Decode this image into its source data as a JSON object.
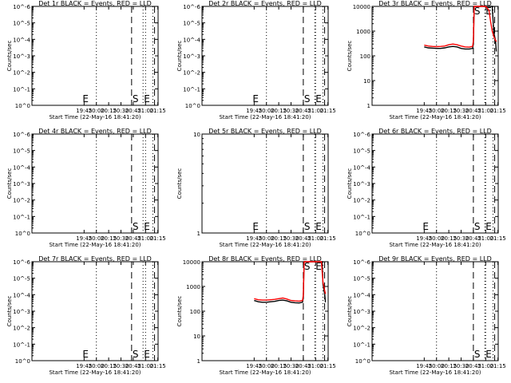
{
  "chart_data": [
    {
      "type": "line",
      "title": "Det 1r BLACK = Events, RED = LLD",
      "xlabel": "Start Time (22-May-16 18:41:20)",
      "ylabel": "Counts/sec",
      "scale": "log",
      "ylim": [
        "1e0",
        "1e-6"
      ],
      "y_ticks": [
        "10^0",
        "10^-1",
        "10^-2",
        "10^-3",
        "10^-4",
        "10^-5",
        "10^-6"
      ],
      "x_ticks": [
        "19:45",
        "20:00",
        "20:15",
        "20:30",
        "20:45",
        "21:00",
        "21:15"
      ],
      "markers": [
        {
          "label": "E",
          "x": "19:45"
        },
        {
          "label": "S",
          "x": "20:43"
        },
        {
          "label": "E",
          "x": "20:57"
        }
      ],
      "series": [],
      "colors": {
        "events": "#000000",
        "lld": "#ff0000"
      }
    },
    {
      "type": "line",
      "title": "Det 2r BLACK = Events, RED = LLD",
      "xlabel": "Start Time (22-May-16 18:41:20)",
      "ylabel": "Counts/sec",
      "scale": "log",
      "ylim": [
        "1e0",
        "1e-6"
      ],
      "y_ticks": [
        "10^0",
        "10^-1",
        "10^-2",
        "10^-3",
        "10^-4",
        "10^-5",
        "10^-6"
      ],
      "x_ticks": [
        "19:45",
        "20:00",
        "20:15",
        "20:30",
        "20:45",
        "21:00",
        "21:15"
      ],
      "markers": [
        {
          "label": "E",
          "x": "19:45"
        },
        {
          "label": "S",
          "x": "20:45"
        },
        {
          "label": "E",
          "x": "20:59"
        }
      ],
      "series": [],
      "colors": {
        "events": "#000000",
        "lld": "#ff0000"
      }
    },
    {
      "type": "line",
      "title": "Det 3r BLACK = Events, RED = LLD",
      "xlabel": "Start Time (22-May-16 18:41:20)",
      "ylabel": "Counts/sec",
      "scale": "log",
      "ylim": [
        1,
        10000
      ],
      "y_ticks": [
        "1",
        "10",
        "100",
        "1000",
        "10000"
      ],
      "x_ticks": [
        "19:45",
        "20:00",
        "20:15",
        "20:30",
        "20:45",
        "21:00",
        "21:15"
      ],
      "markers": [
        {
          "label": "S",
          "x": "20:45"
        },
        {
          "label": "E",
          "x": "20:59"
        }
      ],
      "series": [
        {
          "role": "events",
          "x": [
            "19:45",
            "19:50",
            "19:55",
            "20:00",
            "20:05",
            "20:10",
            "20:15",
            "20:20",
            "20:25",
            "20:30",
            "20:35",
            "20:40",
            "20:44",
            "20:45",
            "20:46",
            "21:08",
            "21:10",
            "21:12",
            "21:13"
          ],
          "y": [
            230,
            210,
            205,
            200,
            200,
            210,
            230,
            240,
            230,
            200,
            190,
            190,
            200,
            300,
            10000,
            10000,
            900,
            400,
            150
          ]
        },
        {
          "role": "lld",
          "x": [
            "19:45",
            "19:50",
            "19:55",
            "20:00",
            "20:05",
            "20:10",
            "20:15",
            "20:20",
            "20:25",
            "20:30",
            "20:35",
            "20:40",
            "20:44",
            "20:45",
            "20:46",
            "21:00",
            "21:04",
            "21:06",
            "21:08",
            "21:10",
            "21:12",
            "21:14"
          ],
          "y": [
            270,
            250,
            240,
            235,
            240,
            250,
            280,
            300,
            280,
            250,
            230,
            225,
            240,
            400,
            10000,
            10000,
            7000,
            2500,
            1000,
            600,
            420,
            380
          ]
        }
      ],
      "colors": {
        "events": "#000000",
        "lld": "#ff0000"
      }
    },
    {
      "type": "line",
      "title": "Det 4r BLACK = Events, RED = LLD",
      "xlabel": "Start Time (22-May-16 18:41:20)",
      "ylabel": "Counts/sec",
      "scale": "log",
      "ylim": [
        "1e0",
        "1e-6"
      ],
      "y_ticks": [
        "10^0",
        "10^-1",
        "10^-2",
        "10^-3",
        "10^-4",
        "10^-5",
        "10^-6"
      ],
      "x_ticks": [
        "19:45",
        "20:00",
        "20:15",
        "20:30",
        "20:45",
        "21:00",
        "21:15"
      ],
      "markers": [
        {
          "label": "S",
          "x": "20:43"
        },
        {
          "label": "E",
          "x": "20:57"
        }
      ],
      "series": [],
      "colors": {
        "events": "#000000",
        "lld": "#ff0000"
      }
    },
    {
      "type": "line",
      "title": "Det 5r BLACK = Events, RED = LLD",
      "xlabel": "Start Time (22-May-16 18:41:20)",
      "ylabel": "Counts/sec",
      "scale": "log",
      "ylim": [
        1,
        10
      ],
      "y_ticks": [
        "1",
        "10"
      ],
      "x_ticks": [
        "19:45",
        "20:00",
        "20:15",
        "20:30",
        "20:45",
        "21:00",
        "21:15"
      ],
      "markers": [
        {
          "label": "E",
          "x": "19:45"
        },
        {
          "label": "S",
          "x": "20:45"
        },
        {
          "label": "E",
          "x": "20:59"
        }
      ],
      "series": [],
      "colors": {
        "events": "#000000",
        "lld": "#ff0000"
      }
    },
    {
      "type": "line",
      "title": "Det 6r BLACK = Events, RED = LLD",
      "xlabel": "Start Time (22-May-16 18:41:20)",
      "ylabel": "Counts/sec",
      "scale": "log",
      "ylim": [
        "1e0",
        "1e-6"
      ],
      "y_ticks": [
        "10^0",
        "10^-1",
        "10^-2",
        "10^-3",
        "10^-4",
        "10^-5",
        "10^-6"
      ],
      "x_ticks": [
        "19:45",
        "20:00",
        "20:15",
        "20:30",
        "20:45",
        "21:00",
        "21:15"
      ],
      "markers": [
        {
          "label": "E",
          "x": "19:45"
        },
        {
          "label": "S",
          "x": "20:45"
        },
        {
          "label": "E",
          "x": "20:59"
        }
      ],
      "series": [],
      "colors": {
        "events": "#000000",
        "lld": "#ff0000"
      }
    },
    {
      "type": "line",
      "title": "Det 7r BLACK = Events, RED = LLD",
      "xlabel": "Start Time (22-May-16 18:41:20)",
      "ylabel": "Counts/sec",
      "scale": "log",
      "ylim": [
        "1e0",
        "1e-6"
      ],
      "y_ticks": [
        "10^0",
        "10^-1",
        "10^-2",
        "10^-3",
        "10^-4",
        "10^-5",
        "10^-6"
      ],
      "x_ticks": [
        "19:45",
        "20:00",
        "20:15",
        "20:30",
        "20:45",
        "21:00",
        "21:15"
      ],
      "markers": [
        {
          "label": "E",
          "x": "19:45"
        },
        {
          "label": "S",
          "x": "20:43"
        },
        {
          "label": "E",
          "x": "20:57"
        }
      ],
      "series": [],
      "colors": {
        "events": "#000000",
        "lld": "#ff0000"
      }
    },
    {
      "type": "line",
      "title": "Det 8r BLACK = Events, RED = LLD",
      "xlabel": "Start Time (22-May-16 18:41:20)",
      "ylabel": "Counts/sec",
      "scale": "log",
      "ylim": [
        1,
        10000
      ],
      "y_ticks": [
        "1",
        "10",
        "100",
        "1000",
        "10000"
      ],
      "x_ticks": [
        "19:45",
        "20:00",
        "20:15",
        "20:30",
        "20:45",
        "21:00",
        "21:15"
      ],
      "markers": [
        {
          "label": "S",
          "x": "20:45"
        },
        {
          "label": "E",
          "x": "20:59"
        }
      ],
      "series": [
        {
          "role": "events",
          "x": [
            "19:45",
            "19:50",
            "19:55",
            "20:00",
            "20:05",
            "20:10",
            "20:15",
            "20:20",
            "20:25",
            "20:30",
            "20:35",
            "20:40",
            "20:44",
            "20:45",
            "20:46",
            "21:08",
            "21:09",
            "21:11",
            "21:12"
          ],
          "y": [
            270,
            240,
            230,
            230,
            240,
            250,
            270,
            280,
            260,
            230,
            220,
            215,
            230,
            350,
            10000,
            10000,
            1200,
            500,
            230
          ]
        },
        {
          "role": "lld",
          "x": [
            "19:45",
            "19:50",
            "19:55",
            "20:00",
            "20:05",
            "20:10",
            "20:15",
            "20:20",
            "20:25",
            "20:30",
            "20:35",
            "20:40",
            "20:44",
            "20:45",
            "20:46",
            "21:07",
            "21:09",
            "21:11",
            "21:12"
          ],
          "y": [
            320,
            290,
            280,
            280,
            290,
            300,
            320,
            340,
            310,
            270,
            260,
            255,
            270,
            450,
            10000,
            10000,
            1500,
            700,
            500
          ]
        }
      ],
      "colors": {
        "events": "#000000",
        "lld": "#ff0000"
      }
    },
    {
      "type": "line",
      "title": "Det 9r BLACK = Events, RED = LLD",
      "xlabel": "Start Time (22-May-16 18:41:20)",
      "ylabel": "Counts/sec",
      "scale": "log",
      "ylim": [
        "1e0",
        "1e-6"
      ],
      "y_ticks": [
        "10^0",
        "10^-1",
        "10^-2",
        "10^-3",
        "10^-4",
        "10^-5",
        "10^-6"
      ],
      "x_ticks": [
        "19:45",
        "20:00",
        "20:15",
        "20:30",
        "20:45",
        "21:00",
        "21:15"
      ],
      "markers": [
        {
          "label": "S",
          "x": "20:45"
        },
        {
          "label": "E",
          "x": "20:59"
        }
      ],
      "series": [],
      "colors": {
        "events": "#000000",
        "lld": "#ff0000"
      }
    }
  ]
}
